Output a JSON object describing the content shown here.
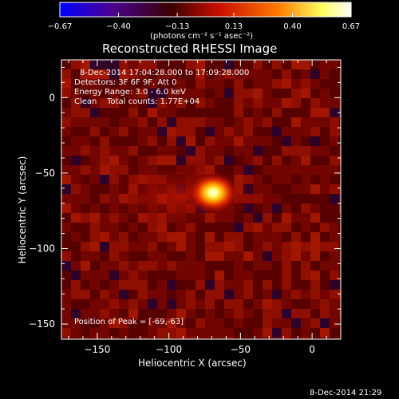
{
  "chart_data": {
    "type": "heatmap",
    "title": "Reconstructed RHESSI Image",
    "xlabel": "Heliocentric X (arcsec)",
    "ylabel": "Heliocentric Y (arcsec)",
    "xlim": [
      -175,
      20
    ],
    "ylim": [
      -160,
      25
    ],
    "x_ticks": [
      -150,
      -100,
      -50,
      0
    ],
    "y_ticks": [
      0,
      -50,
      -100,
      -150
    ],
    "x_tick_labels": [
      "−150",
      "−100",
      "−50",
      "0"
    ],
    "y_tick_labels": [
      "0",
      "−50",
      "−100",
      "−150"
    ],
    "peak": [
      -69,
      -63
    ],
    "colorbar": {
      "range": [
        -0.67,
        0.67
      ],
      "ticks": [
        -0.67,
        -0.4,
        -0.13,
        0.13,
        0.4,
        0.67
      ],
      "tick_labels": [
        "−0.67",
        "−0.40",
        "−0.13",
        "0.13",
        "0.40",
        "0.67"
      ],
      "units_label": "(photons cm⁻² s⁻¹ asec⁻²)"
    },
    "grid": false,
    "colors": {
      "background": "#000000",
      "colormap": [
        "#0000ff",
        "#4b0090",
        "#3a0000",
        "#cc1000",
        "#ff7a00",
        "#ffff60",
        "#ffffff"
      ]
    }
  },
  "info": {
    "time_range": "8-Dec-2014 17:04:28.000 to 17:09:28.000",
    "detectors": "Detectors: 3F 6F 9F, Att 0",
    "energy": "Energy Range: 3.0 - 6.0 keV",
    "clean": "Clean    Total counts: 1.77E+04",
    "peak_label": "Position of Peak = [-69,-63]"
  },
  "footer_timestamp": "8-Dec-2014 21:29"
}
